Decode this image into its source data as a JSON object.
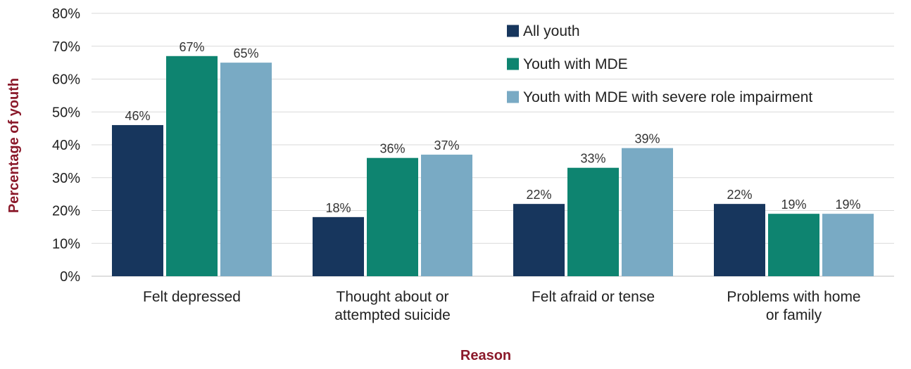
{
  "chart_data": {
    "type": "bar",
    "xlabel": "Reason",
    "ylabel": "Percentage of youth",
    "ylim": [
      0,
      80
    ],
    "yticks": [
      "0%",
      "10%",
      "20%",
      "30%",
      "40%",
      "50%",
      "60%",
      "70%",
      "80%"
    ],
    "grid": true,
    "legend_position": "top-right",
    "categories": [
      [
        "Felt depressed"
      ],
      [
        "Thought about or",
        "attempted suicide"
      ],
      [
        "Felt afraid or tense"
      ],
      [
        "Problems with home",
        "or family"
      ]
    ],
    "series": [
      {
        "name": "All youth",
        "color": "#17365d",
        "values": [
          46,
          18,
          22,
          22
        ],
        "labels": [
          "46%",
          "18%",
          "22%",
          "22%"
        ]
      },
      {
        "name": "Youth with MDE",
        "color": "#0e8470",
        "values": [
          67,
          36,
          33,
          19
        ],
        "labels": [
          "67%",
          "36%",
          "33%",
          "19%"
        ]
      },
      {
        "name": "Youth with MDE with severe role impairment",
        "color": "#79aac4",
        "values": [
          65,
          37,
          39,
          19
        ],
        "labels": [
          "65%",
          "37%",
          "39%",
          "19%"
        ]
      }
    ]
  }
}
